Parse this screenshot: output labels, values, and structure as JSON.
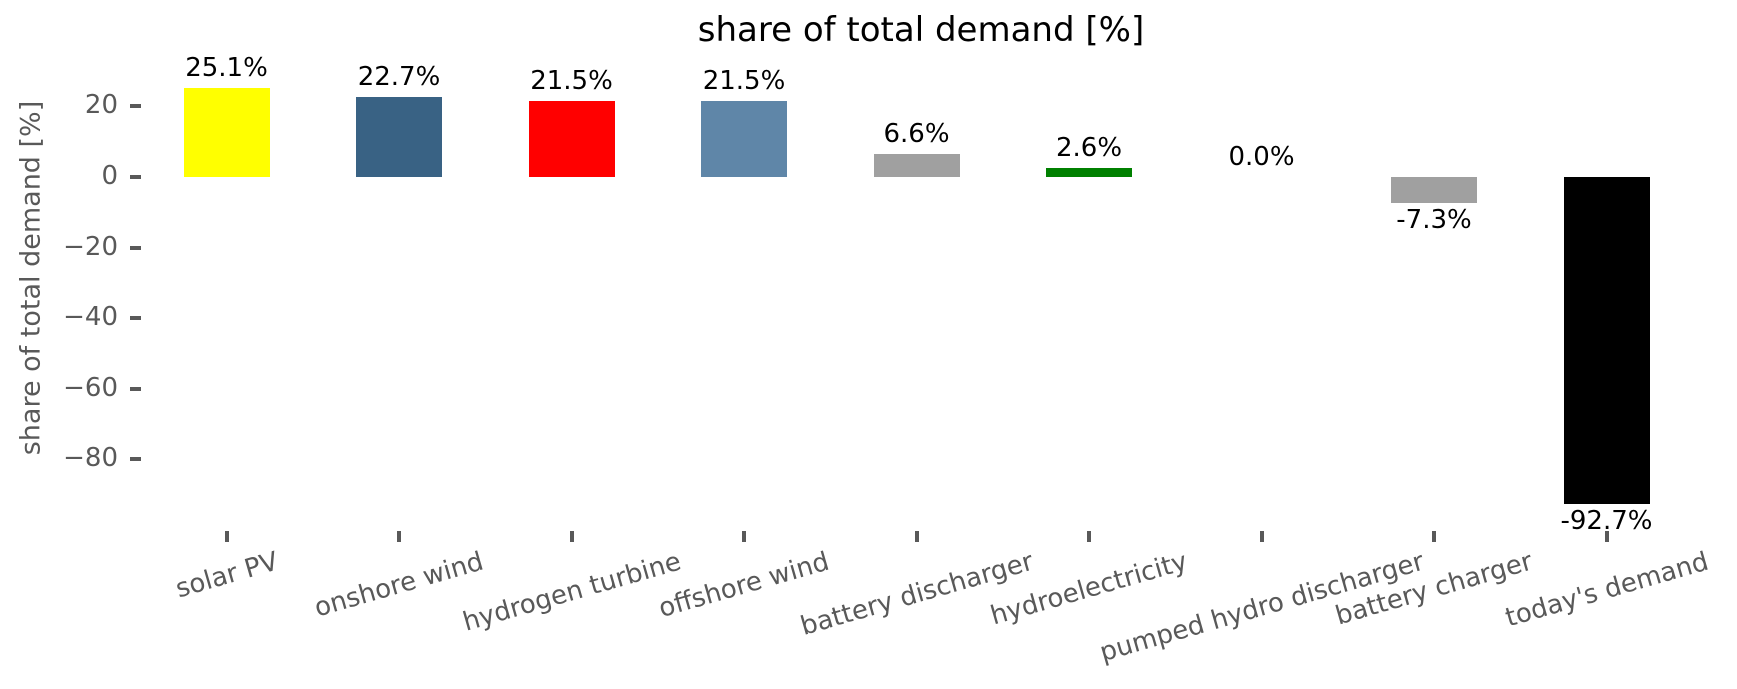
{
  "chart_data": {
    "type": "bar",
    "title": "share of total demand [%]",
    "ylabel": "share of total demand [%]",
    "xlabel": "",
    "grid": false,
    "legend": false,
    "background": "#ffffff",
    "axis_text_color": "#595959",
    "value_label_color": "#000000",
    "ylim": [
      -100,
      30
    ],
    "categories": [
      "solar PV",
      "onshore wind",
      "hydrogen turbine",
      "offshore wind",
      "battery discharger",
      "hydroelectricity",
      "pumped hydro discharger",
      "battery charger",
      "today's demand"
    ],
    "values": [
      25.1,
      22.7,
      21.5,
      21.5,
      6.6,
      2.6,
      0.0,
      -7.3,
      -92.7
    ],
    "value_labels": [
      "25.1%",
      "22.7%",
      "21.5%",
      "21.5%",
      "6.6%",
      "2.6%",
      "0.0%",
      "-7.3%",
      "-92.7%"
    ],
    "bar_colors": [
      "#ffff00",
      "#396284",
      "#ff0000",
      "#5f86a8",
      "#a0a0a0",
      "#008000",
      "#a0a0a0",
      "#a0a0a0",
      "#000000"
    ],
    "yticks": [
      {
        "label": "20",
        "value": 20
      },
      {
        "label": "0",
        "value": 0
      },
      {
        "label": "−20",
        "value": -20
      },
      {
        "label": "−40",
        "value": -40
      },
      {
        "label": "−60",
        "value": -60
      },
      {
        "label": "−80",
        "value": -80
      }
    ]
  }
}
